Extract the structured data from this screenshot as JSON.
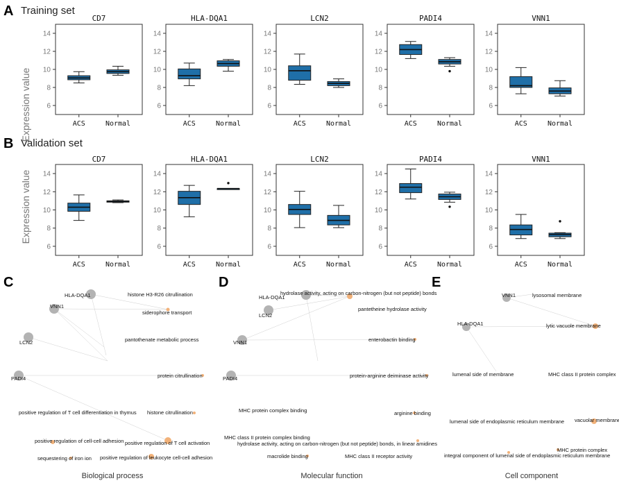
{
  "panels": {
    "A": {
      "letter": "A",
      "title": "Training set"
    },
    "B": {
      "letter": "B",
      "title": "Validation set"
    },
    "C": {
      "letter": "C"
    },
    "D": {
      "letter": "D"
    },
    "E": {
      "letter": "E"
    }
  },
  "y_axis_label": "Expression value",
  "colors": {
    "box": "#1f6fa8",
    "gene_node": "#b3b3b3",
    "term_node": "#f2b27a"
  },
  "chart_data": [
    {
      "type": "boxplot",
      "set": "Training set",
      "title": "CD7",
      "categories": [
        "ACS",
        "Normal"
      ],
      "ylim": [
        5,
        15
      ],
      "yticks": [
        6,
        8,
        10,
        12,
        14
      ],
      "boxes": [
        {
          "whislo": 8.5,
          "q1": 8.85,
          "med": 9.05,
          "q3": 9.3,
          "whishi": 9.75,
          "fliers": []
        },
        {
          "whislo": 9.35,
          "q1": 9.55,
          "med": 9.75,
          "q3": 9.95,
          "whishi": 10.35,
          "fliers": []
        }
      ]
    },
    {
      "type": "boxplot",
      "set": "Training set",
      "title": "HLA-DQA1",
      "categories": [
        "ACS",
        "Normal"
      ],
      "ylim": [
        5,
        15
      ],
      "yticks": [
        6,
        8,
        10,
        12,
        14
      ],
      "boxes": [
        {
          "whislo": 8.2,
          "q1": 8.95,
          "med": 9.3,
          "q3": 10.05,
          "whishi": 10.7,
          "fliers": []
        },
        {
          "whislo": 9.8,
          "q1": 10.35,
          "med": 10.65,
          "q3": 10.95,
          "whishi": 11.1,
          "fliers": []
        }
      ]
    },
    {
      "type": "boxplot",
      "set": "Training set",
      "title": "LCN2",
      "categories": [
        "ACS",
        "Normal"
      ],
      "ylim": [
        5,
        15
      ],
      "yticks": [
        6,
        8,
        10,
        12,
        14
      ],
      "boxes": [
        {
          "whislo": 8.35,
          "q1": 8.8,
          "med": 9.85,
          "q3": 10.4,
          "whishi": 11.7,
          "fliers": []
        },
        {
          "whislo": 8.0,
          "q1": 8.2,
          "med": 8.45,
          "q3": 8.65,
          "whishi": 8.95,
          "fliers": []
        }
      ]
    },
    {
      "type": "boxplot",
      "set": "Training set",
      "title": "PADI4",
      "categories": [
        "ACS",
        "Normal"
      ],
      "ylim": [
        5,
        15
      ],
      "yticks": [
        6,
        8,
        10,
        12,
        14
      ],
      "boxes": [
        {
          "whislo": 11.2,
          "q1": 11.65,
          "med": 12.2,
          "q3": 12.75,
          "whishi": 13.1,
          "fliers": []
        },
        {
          "whislo": 10.35,
          "q1": 10.6,
          "med": 10.85,
          "q3": 11.1,
          "whishi": 11.3,
          "fliers": [
            9.8
          ]
        }
      ]
    },
    {
      "type": "boxplot",
      "set": "Training set",
      "title": "VNN1",
      "categories": [
        "ACS",
        "Normal"
      ],
      "ylim": [
        5,
        15
      ],
      "yticks": [
        6,
        8,
        10,
        12,
        14
      ],
      "boxes": [
        {
          "whislo": 7.3,
          "q1": 8.0,
          "med": 8.2,
          "q3": 9.2,
          "whishi": 10.2,
          "fliers": []
        },
        {
          "whislo": 7.05,
          "q1": 7.3,
          "med": 7.6,
          "q3": 7.95,
          "whishi": 8.75,
          "fliers": []
        }
      ]
    },
    {
      "type": "boxplot",
      "set": "Validation set",
      "title": "CD7",
      "categories": [
        "ACS",
        "Normal"
      ],
      "ylim": [
        5,
        15
      ],
      "yticks": [
        6,
        8,
        10,
        12,
        14
      ],
      "boxes": [
        {
          "whislo": 8.85,
          "q1": 9.85,
          "med": 10.3,
          "q3": 10.75,
          "whishi": 11.65,
          "fliers": []
        },
        {
          "whislo": 10.8,
          "q1": 10.85,
          "med": 10.95,
          "q3": 11.0,
          "whishi": 11.1,
          "fliers": []
        }
      ]
    },
    {
      "type": "boxplot",
      "set": "Validation set",
      "title": "HLA-DQA1",
      "categories": [
        "ACS",
        "Normal"
      ],
      "ylim": [
        5,
        15
      ],
      "yticks": [
        6,
        8,
        10,
        12,
        14
      ],
      "boxes": [
        {
          "whislo": 9.25,
          "q1": 10.6,
          "med": 11.35,
          "q3": 12.05,
          "whishi": 12.7,
          "fliers": []
        },
        {
          "whislo": 12.35,
          "q1": 12.35,
          "med": 12.35,
          "q3": 12.35,
          "whishi": 12.35,
          "fliers": [
            12.95
          ]
        }
      ]
    },
    {
      "type": "boxplot",
      "set": "Validation set",
      "title": "LCN2",
      "categories": [
        "ACS",
        "Normal"
      ],
      "ylim": [
        5,
        15
      ],
      "yticks": [
        6,
        8,
        10,
        12,
        14
      ],
      "boxes": [
        {
          "whislo": 8.05,
          "q1": 9.5,
          "med": 10.05,
          "q3": 10.6,
          "whishi": 12.05,
          "fliers": []
        },
        {
          "whislo": 8.05,
          "q1": 8.35,
          "med": 8.85,
          "q3": 9.4,
          "whishi": 10.5,
          "fliers": []
        }
      ]
    },
    {
      "type": "boxplot",
      "set": "Validation set",
      "title": "PADI4",
      "categories": [
        "ACS",
        "Normal"
      ],
      "ylim": [
        5,
        15
      ],
      "yticks": [
        6,
        8,
        10,
        12,
        14
      ],
      "boxes": [
        {
          "whislo": 11.2,
          "q1": 11.9,
          "med": 12.5,
          "q3": 12.9,
          "whishi": 14.5,
          "fliers": []
        },
        {
          "whislo": 10.85,
          "q1": 11.15,
          "med": 11.45,
          "q3": 11.75,
          "whishi": 11.95,
          "fliers": [
            10.35
          ]
        }
      ]
    },
    {
      "type": "boxplot",
      "set": "Validation set",
      "title": "VNN1",
      "categories": [
        "ACS",
        "Normal"
      ],
      "ylim": [
        5,
        15
      ],
      "yticks": [
        6,
        8,
        10,
        12,
        14
      ],
      "boxes": [
        {
          "whislo": 6.85,
          "q1": 7.25,
          "med": 7.85,
          "q3": 8.35,
          "whishi": 9.5,
          "fliers": []
        },
        {
          "whislo": 6.85,
          "q1": 7.05,
          "med": 7.3,
          "q3": 7.45,
          "whishi": 7.5,
          "fliers": [
            8.75
          ]
        }
      ]
    }
  ],
  "networks": [
    {
      "title": "Biological process",
      "genes": [
        "HLA-DQA1",
        "VNN1",
        "LCN2",
        "PADI4"
      ],
      "terms": [
        "histone H3-R26 citrullination",
        "siderophore transport",
        "pantothenate metabolic process",
        "protein citrullination",
        "positive regulation of T cell differentiation in thymus",
        "histone citrullination",
        "positive regulation of cell-cell adhesion",
        "positive regulation of T cell activation",
        "sequestering of iron ion",
        "positive regulation of leukocyte cell-cell adhesion"
      ]
    },
    {
      "title": "Molecular function",
      "genes": [
        "HLA-DQA1",
        "LCN2",
        "VNN1",
        "PADI4"
      ],
      "terms": [
        "hydrolase activity, acting on carbon-nitrogen (but not peptide) bonds",
        "pantetheine hydrolase activity",
        "enterobactin binding",
        "protein-arginine deiminase activity",
        "MHC protein complex binding",
        "arginine binding",
        "MHC class II protein complex binding",
        "hydrolase activity, acting on carbon-nitrogen (but not peptide) bonds, in linear amidines",
        "macrolide binding",
        "MHC class II receptor activity"
      ]
    },
    {
      "title": "Cell component",
      "genes": [
        "VNN1",
        "HLA-DQA1"
      ],
      "terms": [
        "lysosomal membrane",
        "lytic vacuole membrane",
        "lumenal side of membrane",
        "MHC class II protein complex",
        "lumenal side of endoplasmic reticulum membrane",
        "vacuolar membrane",
        "MHC protein complex",
        "integral component of lumenal side of endoplasmic reticulum membrane"
      ]
    }
  ]
}
